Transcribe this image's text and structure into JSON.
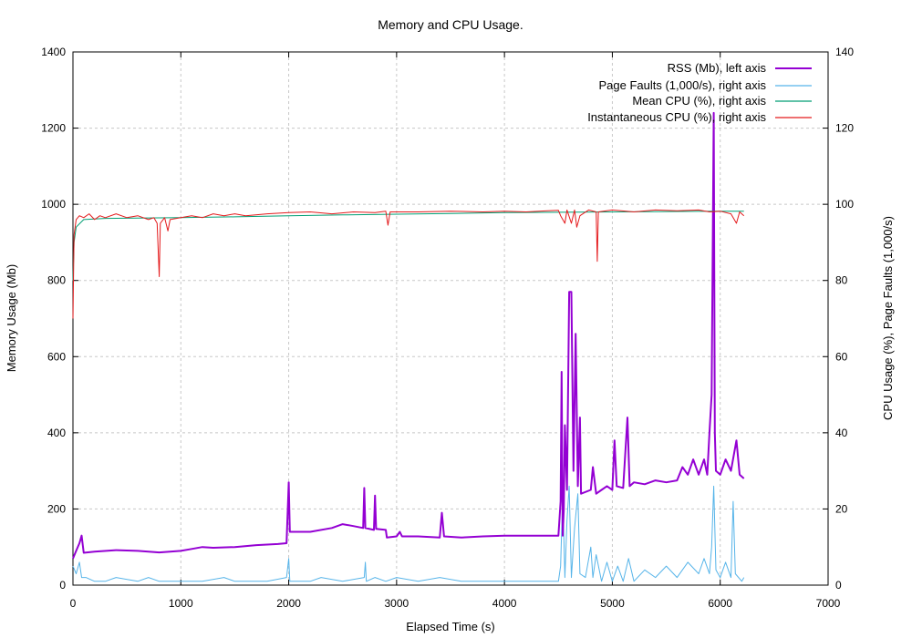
{
  "chart_data": {
    "type": "line",
    "title": "Memory and CPU Usage.",
    "xlabel": "Elapsed Time (s)",
    "ylabel_left": "Memory Usage (Mb)",
    "ylabel_right": "CPU Usage (%), Page Faults (1,000/s)",
    "xlim": [
      0,
      7000
    ],
    "ylim_left": [
      0,
      1400
    ],
    "ylim_right": [
      0,
      140
    ],
    "x_ticks": [
      0,
      1000,
      2000,
      3000,
      4000,
      5000,
      6000,
      7000
    ],
    "y_left_ticks": [
      0,
      200,
      400,
      600,
      800,
      1000,
      1200,
      1400
    ],
    "y_right_ticks": [
      0,
      20,
      40,
      60,
      80,
      100,
      120,
      140
    ],
    "grid": true,
    "legend_position": "top-right",
    "series": [
      {
        "name": "RSS (Mb), left axis",
        "axis": "left",
        "color": "#9400d3",
        "line_width": 2,
        "points": [
          [
            0,
            70
          ],
          [
            30,
            90
          ],
          [
            60,
            110
          ],
          [
            80,
            130
          ],
          [
            100,
            85
          ],
          [
            200,
            88
          ],
          [
            400,
            92
          ],
          [
            600,
            90
          ],
          [
            800,
            86
          ],
          [
            1000,
            90
          ],
          [
            1100,
            95
          ],
          [
            1200,
            100
          ],
          [
            1300,
            98
          ],
          [
            1500,
            100
          ],
          [
            1700,
            105
          ],
          [
            1900,
            108
          ],
          [
            1980,
            110
          ],
          [
            2000,
            270
          ],
          [
            2010,
            140
          ],
          [
            2200,
            140
          ],
          [
            2400,
            150
          ],
          [
            2500,
            160
          ],
          [
            2600,
            155
          ],
          [
            2690,
            150
          ],
          [
            2700,
            255
          ],
          [
            2710,
            150
          ],
          [
            2790,
            145
          ],
          [
            2800,
            235
          ],
          [
            2810,
            148
          ],
          [
            2900,
            145
          ],
          [
            2910,
            125
          ],
          [
            3000,
            128
          ],
          [
            3030,
            140
          ],
          [
            3050,
            128
          ],
          [
            3200,
            128
          ],
          [
            3400,
            125
          ],
          [
            3420,
            190
          ],
          [
            3440,
            128
          ],
          [
            3600,
            125
          ],
          [
            3800,
            128
          ],
          [
            4000,
            130
          ],
          [
            4200,
            130
          ],
          [
            4400,
            130
          ],
          [
            4500,
            130
          ],
          [
            4520,
            220
          ],
          [
            4530,
            560
          ],
          [
            4540,
            130
          ],
          [
            4550,
            200
          ],
          [
            4560,
            420
          ],
          [
            4580,
            250
          ],
          [
            4600,
            770
          ],
          [
            4620,
            770
          ],
          [
            4640,
            300
          ],
          [
            4660,
            660
          ],
          [
            4680,
            260
          ],
          [
            4700,
            440
          ],
          [
            4710,
            240
          ],
          [
            4800,
            250
          ],
          [
            4820,
            310
          ],
          [
            4850,
            240
          ],
          [
            4900,
            250
          ],
          [
            4950,
            260
          ],
          [
            5000,
            250
          ],
          [
            5020,
            380
          ],
          [
            5040,
            260
          ],
          [
            5100,
            255
          ],
          [
            5140,
            440
          ],
          [
            5160,
            260
          ],
          [
            5200,
            270
          ],
          [
            5300,
            265
          ],
          [
            5400,
            275
          ],
          [
            5500,
            270
          ],
          [
            5600,
            275
          ],
          [
            5650,
            310
          ],
          [
            5700,
            290
          ],
          [
            5750,
            330
          ],
          [
            5800,
            290
          ],
          [
            5850,
            330
          ],
          [
            5880,
            290
          ],
          [
            5900,
            400
          ],
          [
            5920,
            500
          ],
          [
            5940,
            1240
          ],
          [
            5950,
            400
          ],
          [
            5960,
            300
          ],
          [
            6000,
            290
          ],
          [
            6050,
            330
          ],
          [
            6100,
            300
          ],
          [
            6150,
            380
          ],
          [
            6180,
            290
          ],
          [
            6220,
            280
          ]
        ]
      },
      {
        "name": "Page Faults (1,000/s), right axis",
        "axis": "right",
        "color": "#56b4e9",
        "line_width": 1,
        "points": [
          [
            0,
            5
          ],
          [
            30,
            3
          ],
          [
            60,
            6
          ],
          [
            80,
            2
          ],
          [
            120,
            2
          ],
          [
            200,
            1
          ],
          [
            300,
            1
          ],
          [
            400,
            2
          ],
          [
            600,
            1
          ],
          [
            700,
            2
          ],
          [
            800,
            1
          ],
          [
            1000,
            1
          ],
          [
            1200,
            1
          ],
          [
            1400,
            2
          ],
          [
            1500,
            1
          ],
          [
            1800,
            1
          ],
          [
            1980,
            2
          ],
          [
            2000,
            7
          ],
          [
            2010,
            1
          ],
          [
            2200,
            1
          ],
          [
            2300,
            2
          ],
          [
            2500,
            1
          ],
          [
            2700,
            2
          ],
          [
            2710,
            6
          ],
          [
            2720,
            1
          ],
          [
            2800,
            2
          ],
          [
            2900,
            1
          ],
          [
            3000,
            2
          ],
          [
            3200,
            1
          ],
          [
            3400,
            2
          ],
          [
            3600,
            1
          ],
          [
            3800,
            1
          ],
          [
            4000,
            1
          ],
          [
            4200,
            1
          ],
          [
            4400,
            1
          ],
          [
            4500,
            1
          ],
          [
            4520,
            5
          ],
          [
            4540,
            24
          ],
          [
            4560,
            2
          ],
          [
            4580,
            17
          ],
          [
            4600,
            26
          ],
          [
            4620,
            2
          ],
          [
            4650,
            15
          ],
          [
            4680,
            24
          ],
          [
            4700,
            3
          ],
          [
            4750,
            2
          ],
          [
            4800,
            10
          ],
          [
            4820,
            2
          ],
          [
            4850,
            8
          ],
          [
            4900,
            1
          ],
          [
            4950,
            6
          ],
          [
            5000,
            1
          ],
          [
            5050,
            5
          ],
          [
            5100,
            1
          ],
          [
            5150,
            7
          ],
          [
            5200,
            1
          ],
          [
            5300,
            4
          ],
          [
            5400,
            2
          ],
          [
            5500,
            5
          ],
          [
            5600,
            2
          ],
          [
            5700,
            6
          ],
          [
            5800,
            3
          ],
          [
            5850,
            7
          ],
          [
            5900,
            3
          ],
          [
            5920,
            10
          ],
          [
            5940,
            26
          ],
          [
            5960,
            4
          ],
          [
            6000,
            2
          ],
          [
            6050,
            6
          ],
          [
            6100,
            2
          ],
          [
            6120,
            22
          ],
          [
            6140,
            3
          ],
          [
            6200,
            1
          ],
          [
            6220,
            2
          ]
        ]
      },
      {
        "name": "Mean CPU (%), right axis",
        "axis": "right",
        "color": "#009e73",
        "line_width": 1,
        "points": [
          [
            0,
            80
          ],
          [
            10,
            90
          ],
          [
            30,
            94
          ],
          [
            100,
            96
          ],
          [
            300,
            96.3
          ],
          [
            600,
            96.4
          ],
          [
            1000,
            96.5
          ],
          [
            1500,
            96.7
          ],
          [
            2000,
            97
          ],
          [
            2500,
            97.2
          ],
          [
            3000,
            97.4
          ],
          [
            3500,
            97.6
          ],
          [
            4000,
            97.8
          ],
          [
            4500,
            97.9
          ],
          [
            5000,
            98
          ],
          [
            5500,
            98.1
          ],
          [
            6000,
            98.2
          ],
          [
            6220,
            98.2
          ]
        ]
      },
      {
        "name": "Instantaneous CPU (%), right axis",
        "axis": "right",
        "color": "#e41a1c",
        "line_width": 1,
        "points": [
          [
            0,
            70
          ],
          [
            10,
            92
          ],
          [
            30,
            96
          ],
          [
            60,
            97
          ],
          [
            100,
            96.5
          ],
          [
            150,
            97.5
          ],
          [
            200,
            96
          ],
          [
            250,
            97
          ],
          [
            300,
            96.5
          ],
          [
            400,
            97.5
          ],
          [
            500,
            96.5
          ],
          [
            600,
            97
          ],
          [
            700,
            96
          ],
          [
            750,
            96.5
          ],
          [
            780,
            95
          ],
          [
            800,
            81
          ],
          [
            810,
            95
          ],
          [
            850,
            96.5
          ],
          [
            880,
            93
          ],
          [
            900,
            96
          ],
          [
            1000,
            96.5
          ],
          [
            1100,
            97
          ],
          [
            1200,
            96.5
          ],
          [
            1300,
            97.5
          ],
          [
            1400,
            97
          ],
          [
            1500,
            97.5
          ],
          [
            1600,
            97
          ],
          [
            1800,
            97.5
          ],
          [
            2000,
            97.8
          ],
          [
            2200,
            98
          ],
          [
            2400,
            97.5
          ],
          [
            2600,
            98
          ],
          [
            2800,
            97.8
          ],
          [
            2900,
            98.2
          ],
          [
            2920,
            94.5
          ],
          [
            2940,
            98
          ],
          [
            3200,
            98
          ],
          [
            3500,
            98.2
          ],
          [
            3800,
            98
          ],
          [
            4000,
            98.2
          ],
          [
            4200,
            98
          ],
          [
            4400,
            98.3
          ],
          [
            4500,
            98.4
          ],
          [
            4520,
            97
          ],
          [
            4560,
            95
          ],
          [
            4580,
            98.5
          ],
          [
            4620,
            95
          ],
          [
            4650,
            98.5
          ],
          [
            4670,
            94
          ],
          [
            4700,
            97
          ],
          [
            4780,
            98.5
          ],
          [
            4850,
            98
          ],
          [
            4860,
            85
          ],
          [
            4870,
            98
          ],
          [
            5000,
            98.5
          ],
          [
            5200,
            98
          ],
          [
            5400,
            98.5
          ],
          [
            5600,
            98.3
          ],
          [
            5800,
            98.5
          ],
          [
            5900,
            98
          ],
          [
            6000,
            98.2
          ],
          [
            6100,
            97.5
          ],
          [
            6150,
            95
          ],
          [
            6180,
            98
          ],
          [
            6220,
            97
          ]
        ]
      }
    ]
  }
}
